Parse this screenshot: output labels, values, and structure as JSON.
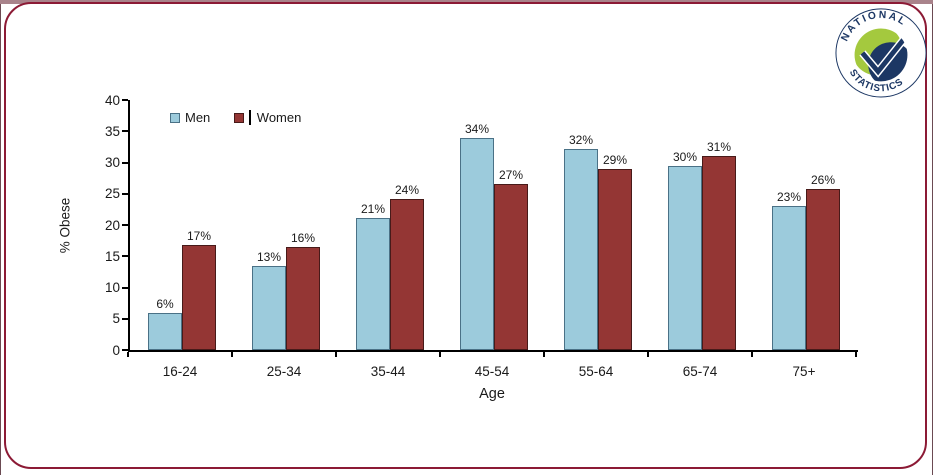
{
  "page": {
    "background": "#ffffff",
    "frame_color": "#8C1A35",
    "top_band_color": "#A9838B"
  },
  "logo": {
    "top_text": "NATIONAL",
    "bottom_text": "STATISTICS",
    "navy": "#1C3764",
    "green": "#A4C93E"
  },
  "chart_data": {
    "type": "bar",
    "title": "",
    "xlabel": "Age",
    "ylabel": "% Obese",
    "categories": [
      "16-24",
      "25-34",
      "35-44",
      "45-54",
      "55-64",
      "65-74",
      "75+"
    ],
    "series": [
      {
        "name": "Men",
        "color": "#9CCBDC",
        "border_color": "#4A7186",
        "values": [
          6,
          13.4,
          21.2,
          34,
          32.2,
          29.5,
          23
        ],
        "labels": [
          "6%",
          "13%",
          "21%",
          "34%",
          "32%",
          "30%",
          "23%"
        ]
      },
      {
        "name": "Women",
        "color": "#943634",
        "border_color": "#471A19",
        "values": [
          16.8,
          16.5,
          24.2,
          26.5,
          28.9,
          31.1,
          25.7
        ],
        "labels": [
          "17%",
          "16%",
          "24%",
          "27%",
          "29%",
          "31%",
          "26%"
        ]
      }
    ],
    "ylim": [
      0,
      40
    ],
    "y_ticks": [
      0,
      5,
      10,
      15,
      20,
      25,
      30,
      35,
      40
    ],
    "grid": false,
    "legend_position": "top-left-inside"
  }
}
